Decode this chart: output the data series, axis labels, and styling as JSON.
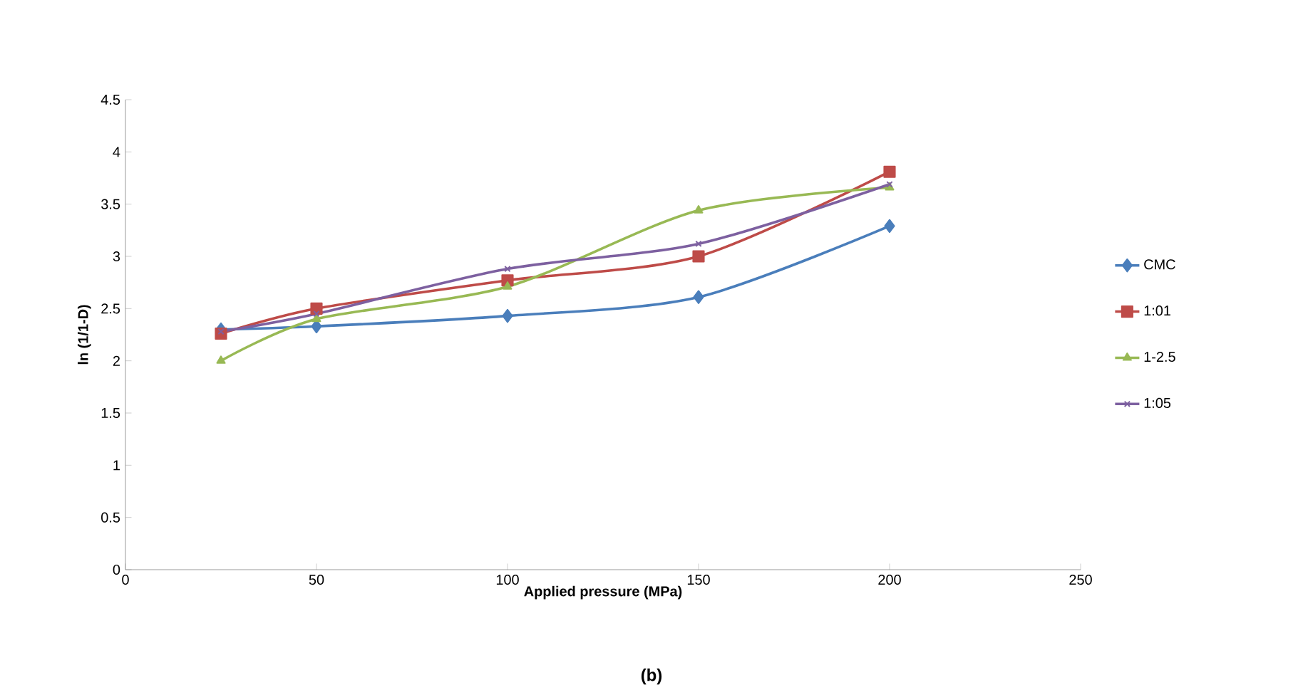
{
  "chart_data": {
    "type": "line",
    "xlabel": "Applied pressure (MPa)",
    "ylabel": "ln (1/1-D)",
    "x": [
      25,
      50,
      100,
      150,
      200
    ],
    "series": [
      {
        "name": "CMC",
        "color": "#4a7ebb",
        "marker": "diamond",
        "values": [
          2.3,
          2.33,
          2.43,
          2.61,
          3.29
        ]
      },
      {
        "name": "1:01",
        "color": "#be4b48",
        "marker": "square",
        "values": [
          2.26,
          2.5,
          2.77,
          3.0,
          3.81
        ]
      },
      {
        "name": "1-2.5",
        "color": "#98b954",
        "marker": "triangle",
        "values": [
          2.0,
          2.4,
          2.71,
          3.44,
          3.66
        ]
      },
      {
        "name": "1:05",
        "color": "#7d60a0",
        "marker": "cross",
        "values": [
          2.28,
          2.45,
          2.88,
          3.12,
          3.69
        ]
      }
    ],
    "xlim": [
      0,
      250
    ],
    "xticks": [
      0,
      50,
      100,
      150,
      200,
      250
    ],
    "ylim": [
      0,
      4.5
    ],
    "yticks": [
      0,
      0.5,
      1,
      1.5,
      2,
      2.5,
      3,
      3.5,
      4,
      4.5
    ],
    "legend": "right",
    "grid": false,
    "annotations": [
      "(b)"
    ]
  }
}
